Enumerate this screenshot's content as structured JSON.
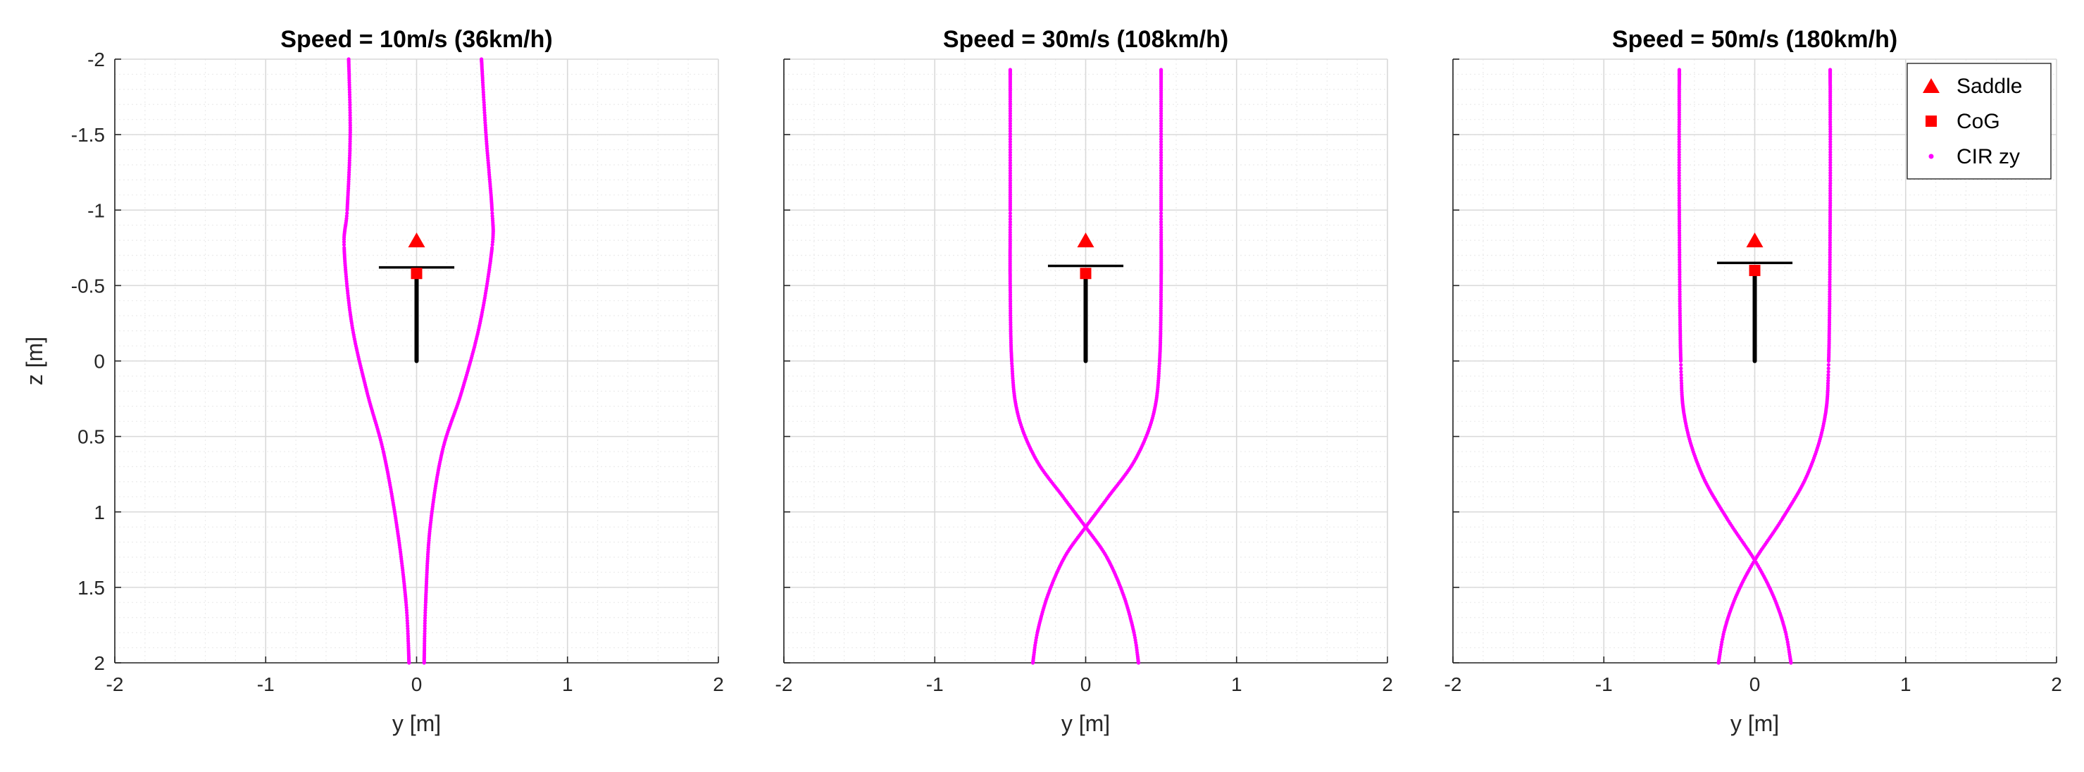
{
  "chart_data": [
    {
      "type": "scatter",
      "title": "Speed = 10m/s (36km/h)",
      "xlabel": "y [m]",
      "ylabel": "z [m]",
      "xlim": [
        -2,
        2
      ],
      "ylim": [
        -2,
        2
      ],
      "y_reversed": true,
      "xticks": [
        "-2",
        "-1",
        "0",
        "1",
        "2"
      ],
      "yticks": [
        "-2",
        "-1.5",
        "-1",
        "-0.5",
        "0",
        "0.5",
        "1",
        "1.5",
        "2"
      ],
      "grid": "major and minor",
      "saddle": {
        "y": 0,
        "z": -0.8
      },
      "cog": {
        "y": 0,
        "z": -0.58
      },
      "rider_bar": {
        "y_from": -0.25,
        "y_to": 0.25,
        "z": -0.62
      },
      "rider_post": {
        "y": 0,
        "z_from": 0,
        "z_to": -0.58
      },
      "cir_curves": [
        {
          "points": [
            [
              -0.45,
              -2
            ],
            [
              -0.44,
              -1.5
            ],
            [
              -0.46,
              -1
            ],
            [
              -0.48,
              -0.75
            ],
            [
              -0.43,
              -0.25
            ],
            [
              -0.33,
              0.2
            ],
            [
              -0.22,
              0.6
            ],
            [
              -0.13,
              1.1
            ],
            [
              -0.07,
              1.6
            ],
            [
              -0.05,
              2
            ]
          ]
        },
        {
          "points": [
            [
              0.43,
              -2
            ],
            [
              0.46,
              -1.5
            ],
            [
              0.5,
              -1
            ],
            [
              0.5,
              -0.75
            ],
            [
              0.42,
              -0.25
            ],
            [
              0.3,
              0.2
            ],
            [
              0.17,
              0.6
            ],
            [
              0.09,
              1.1
            ],
            [
              0.06,
              1.6
            ],
            [
              0.05,
              2
            ]
          ]
        }
      ]
    },
    {
      "type": "scatter",
      "title": "Speed = 30m/s (108km/h)",
      "xlabel": "y [m]",
      "ylabel": "",
      "xlim": [
        -2,
        2
      ],
      "ylim": [
        -2,
        2
      ],
      "y_reversed": true,
      "xticks": [
        "-2",
        "-1",
        "0",
        "1",
        "2"
      ],
      "yticks": [
        "-2",
        "-1.5",
        "-1",
        "-0.5",
        "0",
        "0.5",
        "1",
        "1.5",
        "2"
      ],
      "grid": "major and minor",
      "saddle": {
        "y": 0,
        "z": -0.8
      },
      "cog": {
        "y": 0,
        "z": -0.58
      },
      "rider_bar": {
        "y_from": -0.25,
        "y_to": 0.25,
        "z": -0.63
      },
      "rider_post": {
        "y": 0,
        "z_from": 0,
        "z_to": -0.58
      },
      "cir_curves": [
        {
          "points": [
            [
              -0.5,
              -1.93
            ],
            [
              -0.5,
              -1
            ],
            [
              -0.5,
              -0.5
            ],
            [
              -0.49,
              0
            ],
            [
              -0.45,
              0.35
            ],
            [
              -0.33,
              0.65
            ],
            [
              -0.15,
              0.9
            ],
            [
              0,
              1.1
            ],
            [
              0.14,
              1.3
            ],
            [
              0.25,
              1.55
            ],
            [
              0.32,
              1.8
            ],
            [
              0.35,
              2
            ]
          ]
        },
        {
          "points": [
            [
              0.5,
              -1.93
            ],
            [
              0.5,
              -1
            ],
            [
              0.5,
              -0.5
            ],
            [
              0.49,
              0
            ],
            [
              0.45,
              0.35
            ],
            [
              0.33,
              0.65
            ],
            [
              0.15,
              0.9
            ],
            [
              0,
              1.1
            ],
            [
              -0.14,
              1.3
            ],
            [
              -0.25,
              1.55
            ],
            [
              -0.32,
              1.8
            ],
            [
              -0.35,
              2
            ]
          ]
        }
      ]
    },
    {
      "type": "scatter",
      "title": "Speed = 50m/s (180km/h)",
      "xlabel": "y [m]",
      "ylabel": "",
      "xlim": [
        -2,
        2
      ],
      "ylim": [
        -2,
        2
      ],
      "y_reversed": true,
      "xticks": [
        "-2",
        "-1",
        "0",
        "1",
        "2"
      ],
      "yticks": [
        "-2",
        "-1.5",
        "-1",
        "-0.5",
        "0",
        "0.5",
        "1",
        "1.5",
        "2"
      ],
      "grid": "major and minor",
      "saddle": {
        "y": 0,
        "z": -0.8
      },
      "cog": {
        "y": 0,
        "z": -0.6
      },
      "rider_bar": {
        "y_from": -0.25,
        "y_to": 0.25,
        "z": -0.65
      },
      "rider_post": {
        "y": 0,
        "z_from": 0,
        "z_to": -0.6
      },
      "cir_curves": [
        {
          "points": [
            [
              -0.5,
              -1.93
            ],
            [
              -0.5,
              -1
            ],
            [
              -0.49,
              0
            ],
            [
              -0.46,
              0.4
            ],
            [
              -0.35,
              0.75
            ],
            [
              -0.18,
              1.05
            ],
            [
              0,
              1.32
            ],
            [
              0.12,
              1.55
            ],
            [
              0.2,
              1.78
            ],
            [
              0.24,
              2
            ]
          ]
        },
        {
          "points": [
            [
              0.5,
              -1.93
            ],
            [
              0.5,
              -1
            ],
            [
              0.49,
              0
            ],
            [
              0.46,
              0.4
            ],
            [
              0.35,
              0.75
            ],
            [
              0.18,
              1.05
            ],
            [
              0,
              1.32
            ],
            [
              -0.12,
              1.55
            ],
            [
              -0.2,
              1.78
            ],
            [
              -0.24,
              2
            ]
          ]
        }
      ],
      "legend": {
        "placement": "top-right",
        "entries": [
          {
            "label": "Saddle",
            "marker": "triangle",
            "color": "#ff0000"
          },
          {
            "label": "CoG",
            "marker": "square",
            "color": "#ff0000"
          },
          {
            "label": "CIR zy",
            "marker": "dot",
            "color": "#ff00ff"
          }
        ]
      }
    }
  ],
  "colors": {
    "cir": "#ff00ff",
    "marker": "#ff0000",
    "rider": "#000000",
    "grid_major": "#d9d9d9",
    "grid_minor": "#ececec",
    "axis": "#262626"
  }
}
